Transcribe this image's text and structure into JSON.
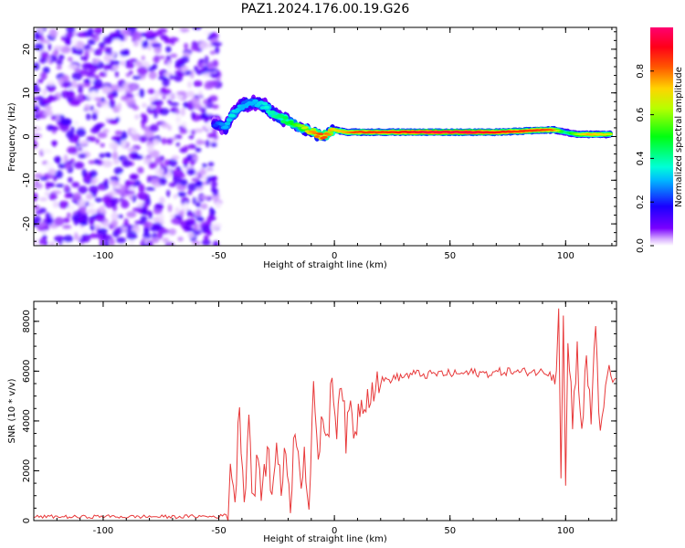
{
  "figure_title": "PAZ1.2024.176.00.19.G26",
  "chart_data": [
    {
      "type": "heatmap",
      "title": "PAZ1.2024.176.00.19.G26",
      "xlabel": "Height of straight line (km)",
      "ylabel": "Frequency (Hz)",
      "xlim": [
        -130,
        122
      ],
      "ylim": [
        -25,
        25
      ],
      "xticks": [
        -100,
        -50,
        0,
        50,
        100
      ],
      "xtick_labels": [
        "-100",
        "-50",
        "0",
        "50",
        "100"
      ],
      "yticks": [
        -20,
        -10,
        0,
        10,
        20
      ],
      "ytick_labels": [
        "-20",
        "-10",
        "0",
        "10",
        "20"
      ],
      "colorbar": {
        "label": "Normalized spectral amplitude",
        "range": [
          0,
          1
        ],
        "ticks": [
          0.0,
          0.2,
          0.4,
          0.6,
          0.8
        ],
        "tick_labels": [
          "0.0",
          "0.2",
          "0.4",
          "0.6",
          "0.8"
        ],
        "colormap": "gist_rainbow_r"
      },
      "noise_region": {
        "x_range": [
          -130,
          -50
        ],
        "f_range": [
          -25,
          25
        ],
        "amplitude_range": [
          0.0,
          0.15
        ]
      },
      "ridge": [
        {
          "x": -52,
          "f": 3,
          "amp": 0.2
        },
        {
          "x": -47,
          "f": 2,
          "amp": 0.3
        },
        {
          "x": -44,
          "f": 5,
          "amp": 0.35
        },
        {
          "x": -40,
          "f": 7,
          "amp": 0.3
        },
        {
          "x": -35,
          "f": 8,
          "amp": 0.3
        },
        {
          "x": -30,
          "f": 7,
          "amp": 0.35
        },
        {
          "x": -26,
          "f": 5,
          "amp": 0.4
        },
        {
          "x": -22,
          "f": 4,
          "amp": 0.45
        },
        {
          "x": -18,
          "f": 3,
          "amp": 0.5
        },
        {
          "x": -14,
          "f": 2,
          "amp": 0.6
        },
        {
          "x": -10,
          "f": 1,
          "amp": 0.75
        },
        {
          "x": -5,
          "f": 0,
          "amp": 0.85
        },
        {
          "x": 0,
          "f": 1.5,
          "amp": 0.7
        },
        {
          "x": 5,
          "f": 1,
          "amp": 0.75
        },
        {
          "x": 10,
          "f": 1,
          "amp": 0.85
        },
        {
          "x": 20,
          "f": 1,
          "amp": 0.85
        },
        {
          "x": 30,
          "f": 1,
          "amp": 0.9
        },
        {
          "x": 40,
          "f": 1,
          "amp": 0.95
        },
        {
          "x": 50,
          "f": 1,
          "amp": 0.95
        },
        {
          "x": 60,
          "f": 1,
          "amp": 0.95
        },
        {
          "x": 70,
          "f": 1,
          "amp": 0.9
        },
        {
          "x": 80,
          "f": 1.2,
          "amp": 0.85
        },
        {
          "x": 90,
          "f": 1.5,
          "amp": 0.85
        },
        {
          "x": 95,
          "f": 1.5,
          "amp": 0.8
        },
        {
          "x": 100,
          "f": 1,
          "amp": 0.4
        },
        {
          "x": 105,
          "f": 0.5,
          "amp": 0.6
        },
        {
          "x": 110,
          "f": 0.5,
          "amp": 0.75
        },
        {
          "x": 115,
          "f": 0.5,
          "amp": 0.7
        },
        {
          "x": 120,
          "f": 0.5,
          "amp": 0.65
        }
      ]
    },
    {
      "type": "line",
      "xlabel": "Height of straight line (km)",
      "ylabel": "SNR (10 * v/v)",
      "xlim": [
        -130,
        122
      ],
      "ylim": [
        0,
        8800
      ],
      "xticks": [
        -100,
        -50,
        0,
        50,
        100
      ],
      "xtick_labels": [
        "-100",
        "-50",
        "0",
        "50",
        "100"
      ],
      "yticks": [
        0,
        2000,
        4000,
        6000,
        8000
      ],
      "ytick_labels": [
        "0",
        "2000",
        "4000",
        "6000",
        "8000"
      ],
      "color": "#e8393a",
      "series": [
        {
          "x": [
            -130,
            -120,
            -110,
            -100,
            -90,
            -80,
            -70,
            -60,
            -50,
            -46,
            -45,
            -43,
            -41,
            -39,
            -37,
            -35,
            -33,
            -31,
            -29,
            -27,
            -25,
            -23,
            -21,
            -19,
            -17,
            -15,
            -13,
            -11,
            -9,
            -7,
            -5,
            -3,
            -1,
            1,
            3,
            5,
            7,
            9,
            11,
            13,
            15,
            17,
            20,
            25,
            30,
            35,
            40,
            45,
            50,
            55,
            60,
            65,
            70,
            75,
            80,
            85,
            90,
            94,
            96,
            97,
            98,
            99,
            100,
            101,
            103,
            105,
            107,
            109,
            111,
            113,
            115,
            118,
            122
          ],
          "y": [
            150,
            160,
            140,
            170,
            150,
            160,
            150,
            170,
            160,
            250,
            2500,
            700,
            4700,
            800,
            4200,
            600,
            2700,
            800,
            3200,
            700,
            3500,
            1200,
            2800,
            700,
            4100,
            1500,
            2700,
            800,
            5800,
            1800,
            4400,
            3200,
            5700,
            3900,
            6000,
            3200,
            4600,
            3500,
            4700,
            4900,
            5200,
            5400,
            5600,
            5700,
            5800,
            5900,
            5850,
            5900,
            5900,
            5900,
            5950,
            5900,
            5950,
            6000,
            5950,
            6000,
            5950,
            6000,
            6100,
            8700,
            2200,
            8600,
            1100,
            7200,
            4200,
            6800,
            3600,
            6400,
            4100,
            8100,
            3100,
            5800,
            5700
          ]
        }
      ]
    }
  ]
}
